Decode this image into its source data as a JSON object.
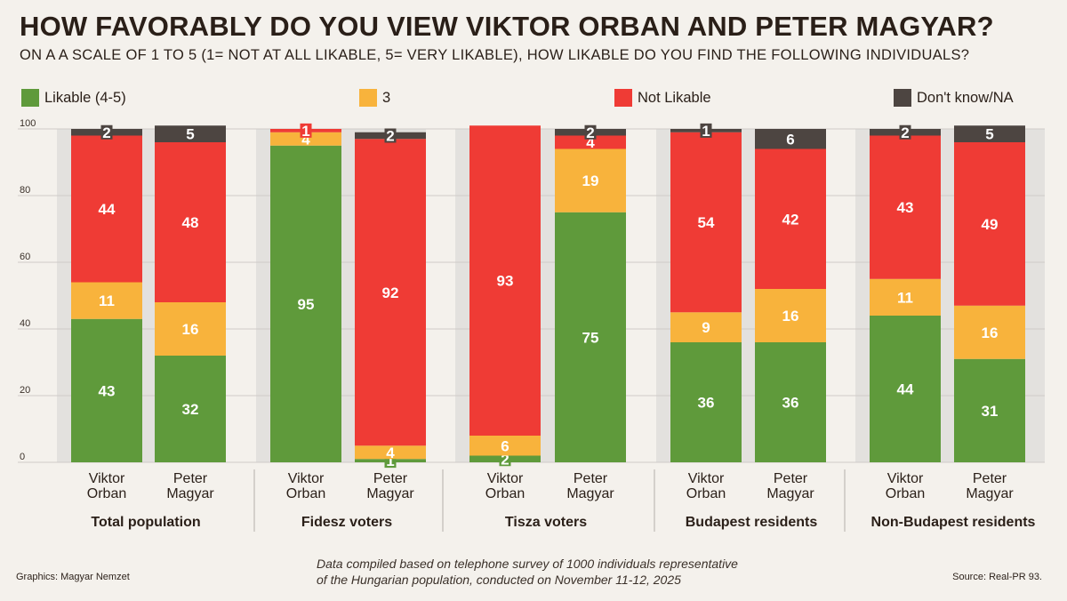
{
  "title": "HOW FAVORABLY DO YOU VIEW VIKTOR ORBAN AND PETER MAGYAR?",
  "subtitle": "ON A A SCALE OF 1 TO 5 (1= NOT AT ALL LIKABLE, 5= VERY LIKABLE), HOW LIKABLE DO YOU FIND THE FOLLOWING INDIVIDUALS?",
  "colors": {
    "likable": "#5f9a3b",
    "three": "#f8b33c",
    "not_likable": "#ef3b35",
    "dont_know": "#4d4541",
    "panel": "#e3e1de",
    "gridline": "#cfccc8"
  },
  "legend": [
    {
      "label": "Likable (4-5)",
      "color": "#5f9a3b"
    },
    {
      "label": "3",
      "color": "#f8b33c"
    },
    {
      "label": "Not Likable",
      "color": "#ef3b35"
    },
    {
      "label": "Don't know/NA",
      "color": "#4d4541"
    }
  ],
  "chart_data": {
    "type": "bar",
    "stacked": true,
    "ylim": [
      0,
      100
    ],
    "yticks": [
      "0",
      "20",
      "40",
      "60",
      "80",
      "100"
    ],
    "series_order": [
      "Likable (4-5)",
      "3",
      "Not Likable",
      "Don't know/NA"
    ],
    "groups": [
      {
        "name": "Total population",
        "bars": [
          {
            "line1": "Viktor",
            "line2": "Orban",
            "values": [
              43,
              11,
              44,
              2
            ]
          },
          {
            "line1": "Peter",
            "line2": "Magyar",
            "values": [
              32,
              16,
              48,
              5
            ]
          }
        ]
      },
      {
        "name": "Fidesz voters",
        "bars": [
          {
            "line1": "Viktor",
            "line2": "Orban",
            "values": [
              95,
              4,
              1,
              0
            ]
          },
          {
            "line1": "Peter",
            "line2": "Magyar",
            "values": [
              1,
              4,
              92,
              2
            ]
          }
        ]
      },
      {
        "name": "Tisza voters",
        "bars": [
          {
            "line1": "Viktor",
            "line2": "Orban",
            "values": [
              2,
              6,
              93,
              0
            ]
          },
          {
            "line1": "Peter",
            "line2": "Magyar",
            "values": [
              75,
              19,
              4,
              2
            ]
          }
        ]
      },
      {
        "name": "Budapest residents",
        "bars": [
          {
            "line1": "Viktor",
            "line2": "Orban",
            "values": [
              36,
              9,
              54,
              1
            ]
          },
          {
            "line1": "Peter",
            "line2": "Magyar",
            "values": [
              36,
              16,
              42,
              6
            ]
          }
        ]
      },
      {
        "name": "Non-Budapest residents",
        "bars": [
          {
            "line1": "Viktor",
            "line2": "Orban",
            "values": [
              44,
              11,
              43,
              2
            ]
          },
          {
            "line1": "Peter",
            "line2": "Magyar",
            "values": [
              31,
              16,
              49,
              5
            ]
          }
        ]
      }
    ]
  },
  "footer": {
    "credit": "Graphics: Magyar Nemzet",
    "note_line1": "Data compiled based on telephone survey of 1000 individuals representative",
    "note_line2": "of the Hungarian population, conducted on November 11-12, 2025",
    "source": "Source: Real-PR 93."
  }
}
